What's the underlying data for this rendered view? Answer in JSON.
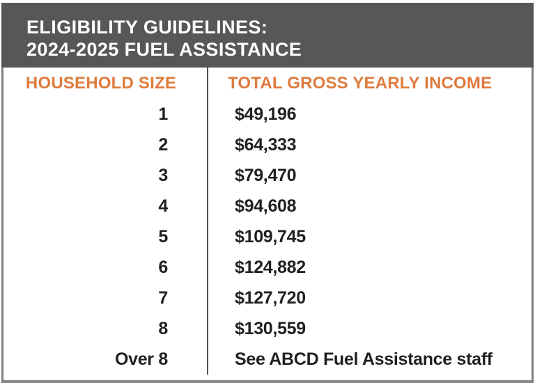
{
  "header": {
    "title_line1": "ELIGIBILITY GUIDELINES:",
    "title_line2": "2024-2025 FUEL ASSISTANCE"
  },
  "table": {
    "columns": {
      "household": "HOUSEHOLD SIZE",
      "income": "TOTAL GROSS YEARLY INCOME"
    },
    "rows": [
      {
        "size": "1",
        "income": "$49,196"
      },
      {
        "size": "2",
        "income": "$64,333"
      },
      {
        "size": "3",
        "income": "$79,470"
      },
      {
        "size": "4",
        "income": "$94,608"
      },
      {
        "size": "5",
        "income": "$109,745"
      },
      {
        "size": "6",
        "income": "$124,882"
      },
      {
        "size": "7",
        "income": "$127,720"
      },
      {
        "size": "8",
        "income": "$130,559"
      },
      {
        "size": "Over 8",
        "income": "See ABCD Fuel Assistance staff"
      }
    ]
  },
  "colors": {
    "banner_background": "#575659",
    "accent_orange": "#DE7B3D",
    "text_dark": "#231F20",
    "border_gray": "#7D7D80"
  }
}
